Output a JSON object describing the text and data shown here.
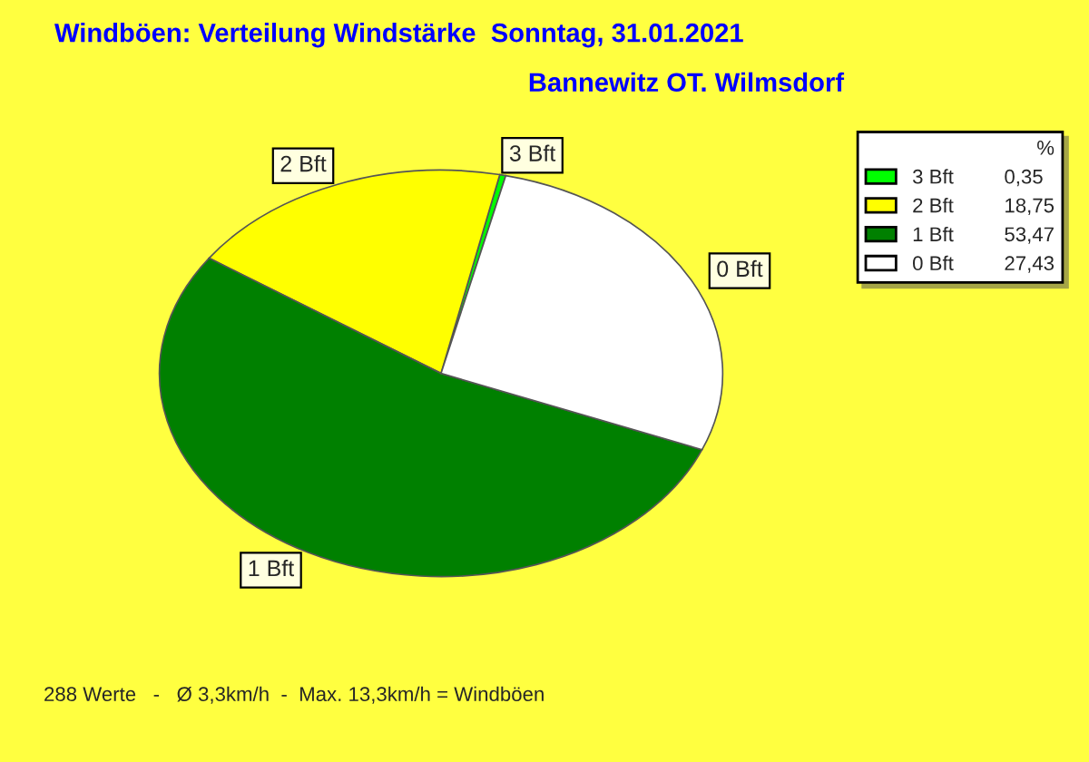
{
  "chart_data": {
    "type": "pie",
    "title": "Windböen: Verteilung Windstärke  Sonntag, 31.01.2021",
    "subtitle": "Bannewitz OT. Wilmsdorf",
    "categories": [
      "3 Bft",
      "2 Bft",
      "1 Bft",
      "0 Bft"
    ],
    "values": [
      0.35,
      18.75,
      53.47,
      27.43
    ],
    "value_labels": [
      "0,35",
      "18,75",
      "53,47",
      "27,43"
    ],
    "colors": [
      "#00ff00",
      "#ffff00",
      "#008000",
      "#ffffff"
    ],
    "legend": "top right",
    "legend_title": "%",
    "annotations": [
      "288 Werte   -   Ø 3,3km/h  -  Max. 13,3km/h = Windböen"
    ]
  }
}
